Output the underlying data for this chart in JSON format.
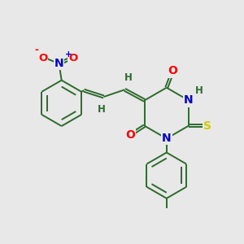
{
  "bg_color": "#e8e8e8",
  "bond_color": "#2d6a2d",
  "atom_colors": {
    "O": "#ff0000",
    "N": "#0000cc",
    "S": "#cccc00",
    "H": "#2d6a2d",
    "C": "#2d6a2d",
    "NO2_N": "#0000cc",
    "NO2_O": "#ff0000"
  },
  "font_size": 8.5,
  "line_width": 1.4,
  "figsize": [
    3.0,
    3.0
  ],
  "dpi": 100
}
